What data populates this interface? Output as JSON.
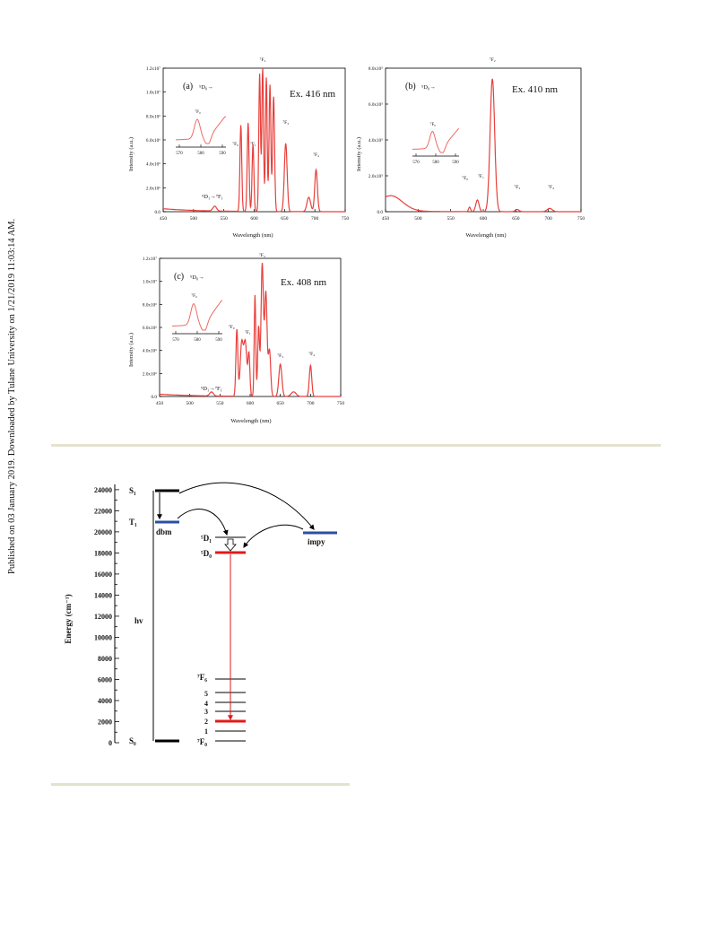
{
  "sidebar_note": "Published on 03 January 2019. Downloaded by Tulane University on 1/21/2019 11:03:14 AM.",
  "colors": {
    "spectrum": "#e8403c",
    "inset": "#ef6a63",
    "t1_level": "#2c4fa0",
    "d0_level": "#e01b1b",
    "divider": "#e3e2cf"
  },
  "panels": [
    {
      "label": "(a)",
      "excitation": "Ex. 416 nm",
      "arrow_label": "⁵D₀→",
      "ylabel": "Intensity (a.u.)",
      "xlabel": "Wavelength (nm)",
      "yticks": [
        "0.0",
        "2.0x10⁶",
        "4.0x10⁶",
        "6.0x10⁶",
        "8.0x10⁶",
        "1.0x10⁷",
        "1.2x10⁷"
      ],
      "xticks": [
        "450",
        "500",
        "550",
        "600",
        "650",
        "700",
        "750"
      ],
      "peaks": [
        "⁷F₀",
        "⁷F₁",
        "⁷F₂",
        "⁷F₃",
        "⁷F₄"
      ],
      "extra_transition": "⁵D₁→⁷F₁",
      "inset_label": "⁷F₀",
      "inset_ticks": [
        "570",
        "580",
        "590"
      ]
    },
    {
      "label": "(b)",
      "excitation": "Ex. 410 nm",
      "arrow_label": "⁵D₀→",
      "ylabel": "Intensity (a.u.)",
      "xlabel": "Wavelength (nm)",
      "yticks": [
        "0.0",
        "2.0x10⁵",
        "4.0x10⁵",
        "6.0x10⁵",
        "8.0x10⁵"
      ],
      "xticks": [
        "450",
        "500",
        "550",
        "600",
        "650",
        "700",
        "750"
      ],
      "peaks": [
        "⁷F₀",
        "⁷F₁",
        "⁷F₂",
        "⁷F₃",
        "⁷F₄"
      ],
      "inset_label": "⁷F₀",
      "inset_ticks": [
        "570",
        "580",
        "590"
      ]
    },
    {
      "label": "(c)",
      "excitation": "Ex. 408 nm",
      "arrow_label": "⁵D₀→",
      "ylabel": "Intensity (a.u.)",
      "xlabel": "Wavelength (nm)",
      "yticks": [
        "0.0",
        "2.0x10⁶",
        "4.0x10⁶",
        "6.0x10⁶",
        "8.0x10⁶",
        "1.0x10⁷",
        "1.2x10⁷"
      ],
      "xticks": [
        "450",
        "500",
        "550",
        "600",
        "650",
        "700",
        "750"
      ],
      "peaks": [
        "⁷F₀",
        "⁷F₁",
        "⁷F₂",
        "⁷F₃",
        "⁷F₄"
      ],
      "extra_transition": "⁵D₁→⁷F₁",
      "inset_label": "⁷F₀",
      "inset_ticks": [
        "570",
        "580",
        "590"
      ]
    }
  ],
  "energy_diagram": {
    "ylabel": "Energy (cm⁻¹)",
    "yticks": [
      "0",
      "2000",
      "4000",
      "6000",
      "8000",
      "10000",
      "12000",
      "14000",
      "16000",
      "18000",
      "20000",
      "22000",
      "24000"
    ],
    "labels": {
      "s1": "S₁",
      "t1": "T₁",
      "s0": "S₀",
      "dbm": "dbm",
      "impy": "impy",
      "hv": "hv",
      "d1": "⁵D₁",
      "d0": "⁵D₀",
      "f6": "⁷F₆",
      "f5": "5",
      "f4": "4",
      "f3": "3",
      "f2": "2",
      "f1": "1",
      "f0": "⁷F₀"
    }
  }
}
